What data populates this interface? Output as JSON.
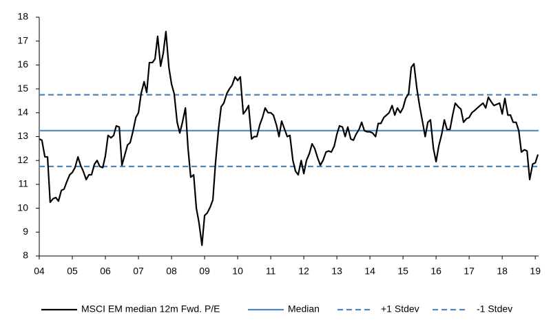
{
  "chart_data": {
    "type": "line",
    "x": [
      2004.0,
      2004.08,
      2004.17,
      2004.25,
      2004.33,
      2004.42,
      2004.5,
      2004.58,
      2004.67,
      2004.75,
      2004.83,
      2004.92,
      2005.0,
      2005.08,
      2005.17,
      2005.25,
      2005.33,
      2005.42,
      2005.5,
      2005.58,
      2005.67,
      2005.75,
      2005.83,
      2005.92,
      2006.0,
      2006.08,
      2006.17,
      2006.25,
      2006.33,
      2006.42,
      2006.5,
      2006.58,
      2006.67,
      2006.75,
      2006.83,
      2006.92,
      2007.0,
      2007.08,
      2007.17,
      2007.25,
      2007.33,
      2007.42,
      2007.5,
      2007.58,
      2007.67,
      2007.75,
      2007.83,
      2007.92,
      2008.0,
      2008.08,
      2008.17,
      2008.25,
      2008.33,
      2008.42,
      2008.5,
      2008.58,
      2008.67,
      2008.75,
      2008.83,
      2008.92,
      2009.0,
      2009.08,
      2009.17,
      2009.25,
      2009.33,
      2009.42,
      2009.5,
      2009.58,
      2009.67,
      2009.75,
      2009.83,
      2009.92,
      2010.0,
      2010.08,
      2010.17,
      2010.25,
      2010.33,
      2010.42,
      2010.5,
      2010.58,
      2010.67,
      2010.75,
      2010.83,
      2010.92,
      2011.0,
      2011.08,
      2011.17,
      2011.25,
      2011.33,
      2011.42,
      2011.5,
      2011.58,
      2011.67,
      2011.75,
      2011.83,
      2011.92,
      2012.0,
      2012.08,
      2012.17,
      2012.25,
      2012.33,
      2012.42,
      2012.5,
      2012.58,
      2012.67,
      2012.75,
      2012.83,
      2012.92,
      2013.0,
      2013.08,
      2013.17,
      2013.25,
      2013.33,
      2013.42,
      2013.5,
      2013.58,
      2013.67,
      2013.75,
      2013.83,
      2013.92,
      2014.0,
      2014.08,
      2014.17,
      2014.25,
      2014.33,
      2014.42,
      2014.5,
      2014.58,
      2014.67,
      2014.75,
      2014.83,
      2014.92,
      2015.0,
      2015.08,
      2015.17,
      2015.25,
      2015.33,
      2015.42,
      2015.5,
      2015.58,
      2015.67,
      2015.75,
      2015.83,
      2015.92,
      2016.0,
      2016.08,
      2016.17,
      2016.25,
      2016.33,
      2016.42,
      2016.5,
      2016.58,
      2016.67,
      2016.75,
      2016.83,
      2016.92,
      2017.0,
      2017.08,
      2017.17,
      2017.25,
      2017.33,
      2017.42,
      2017.5,
      2017.58,
      2017.67,
      2017.75,
      2017.83,
      2017.92,
      2018.0,
      2018.08,
      2018.17,
      2018.25,
      2018.33,
      2018.42,
      2018.5,
      2018.58,
      2018.67,
      2018.75,
      2018.83,
      2018.92,
      2019.0,
      2019.08
    ],
    "series": [
      {
        "name": "MSCI EM median 12m Fwd. P/E",
        "color": "#000000",
        "values": [
          12.9,
          12.85,
          12.15,
          12.15,
          10.25,
          10.4,
          10.45,
          10.3,
          10.75,
          10.8,
          11.1,
          11.4,
          11.5,
          11.7,
          12.15,
          11.8,
          11.55,
          11.2,
          11.4,
          11.4,
          11.85,
          12.0,
          11.75,
          11.7,
          12.2,
          13.05,
          12.95,
          13.05,
          13.45,
          13.4,
          11.8,
          12.2,
          12.65,
          12.75,
          13.2,
          13.8,
          14.0,
          14.8,
          15.3,
          14.85,
          16.1,
          16.1,
          16.25,
          17.2,
          15.95,
          16.5,
          17.4,
          15.9,
          15.2,
          14.8,
          13.6,
          13.15,
          13.6,
          14.2,
          12.5,
          11.3,
          11.4,
          10.0,
          9.4,
          8.45,
          9.7,
          9.8,
          10.05,
          10.35,
          11.9,
          13.3,
          14.25,
          14.4,
          14.8,
          15.0,
          15.15,
          15.5,
          15.35,
          15.5,
          13.95,
          14.1,
          14.3,
          12.9,
          13.0,
          13.0,
          13.5,
          13.8,
          14.2,
          14.0,
          14.0,
          13.9,
          13.5,
          13.0,
          13.65,
          13.3,
          13.0,
          13.05,
          12.0,
          11.55,
          11.4,
          12.0,
          11.45,
          12.0,
          12.3,
          12.7,
          12.5,
          12.1,
          11.8,
          12.0,
          12.35,
          12.4,
          12.35,
          12.6,
          13.1,
          13.45,
          13.4,
          13.0,
          13.4,
          12.9,
          12.85,
          13.1,
          13.3,
          13.6,
          13.25,
          13.2,
          13.2,
          13.15,
          13.0,
          13.55,
          13.55,
          13.8,
          13.9,
          14.0,
          14.3,
          13.9,
          14.2,
          14.0,
          14.2,
          14.6,
          14.8,
          15.9,
          16.05,
          15.0,
          14.3,
          13.7,
          13.0,
          13.6,
          13.7,
          12.5,
          11.95,
          12.6,
          13.1,
          13.7,
          13.3,
          13.3,
          13.9,
          14.4,
          14.25,
          14.15,
          13.6,
          13.75,
          13.8,
          14.0,
          14.1,
          14.2,
          14.3,
          14.4,
          14.2,
          14.65,
          14.45,
          14.3,
          14.35,
          14.4,
          13.95,
          14.6,
          13.9,
          13.9,
          13.6,
          13.6,
          13.25,
          12.35,
          12.45,
          12.4,
          11.2,
          11.85,
          11.9,
          12.25
        ]
      },
      {
        "name": "Median",
        "color": "#4f87ba",
        "value": 13.25,
        "dashed": false
      },
      {
        "name": "+1 Stdev",
        "color": "#4f87ba",
        "value": 14.75,
        "dashed": true
      },
      {
        "name": "-1 Stdev",
        "color": "#4f87ba",
        "value": 11.75,
        "dashed": true
      }
    ],
    "xlim": [
      2004,
      2019.1
    ],
    "xticks": [
      {
        "value": 2004,
        "label": "04"
      },
      {
        "value": 2005,
        "label": "05"
      },
      {
        "value": 2006,
        "label": "06"
      },
      {
        "value": 2007,
        "label": "07"
      },
      {
        "value": 2008,
        "label": "08"
      },
      {
        "value": 2009,
        "label": "09"
      },
      {
        "value": 2010,
        "label": "10"
      },
      {
        "value": 2011,
        "label": "11"
      },
      {
        "value": 2012,
        "label": "12"
      },
      {
        "value": 2013,
        "label": "13"
      },
      {
        "value": 2014,
        "label": "14"
      },
      {
        "value": 2015,
        "label": "15"
      },
      {
        "value": 2016,
        "label": "16"
      },
      {
        "value": 2017,
        "label": "17"
      },
      {
        "value": 2018,
        "label": "18"
      },
      {
        "value": 2019,
        "label": "19"
      }
    ],
    "ylim": [
      8,
      18
    ],
    "yticks": [
      8,
      9,
      10,
      11,
      12,
      13,
      14,
      15,
      16,
      17,
      18
    ],
    "grid": false,
    "legend": "bottom"
  }
}
